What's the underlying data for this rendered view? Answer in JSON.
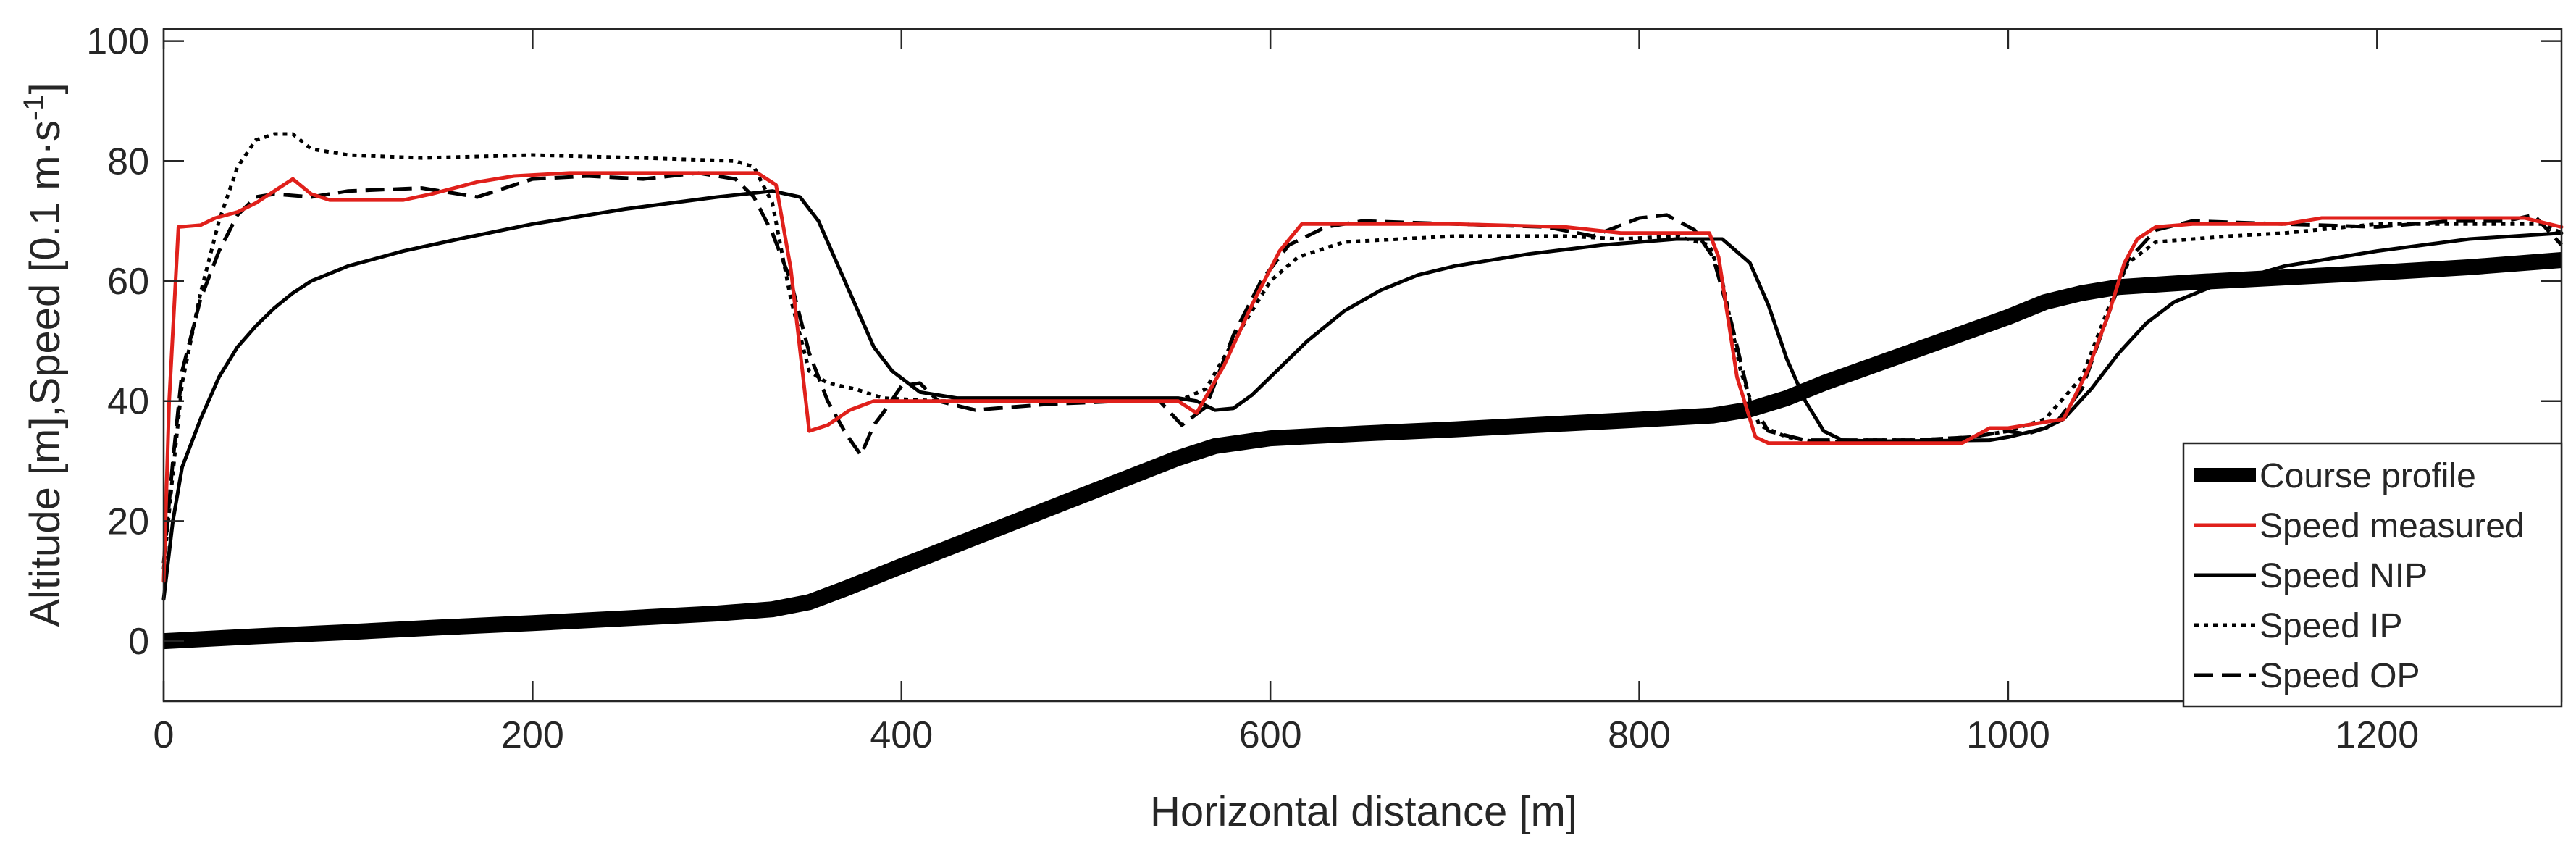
{
  "chart_data": {
    "type": "line",
    "title": "",
    "xlabel": "Horizontal distance [m]",
    "ylabel_parts": [
      "Altitude [m],Speed [0.1 m",
      "s",
      "]"
    ],
    "ylabel_dot": "·",
    "ylabel_exponent": "-1",
    "xlim": [
      0,
      1300
    ],
    "ylim": [
      -10,
      102
    ],
    "xticks": [
      0,
      200,
      400,
      600,
      800,
      1000,
      1200
    ],
    "yticks": [
      0,
      20,
      40,
      60,
      80,
      100
    ],
    "grid": false,
    "legend_position": "bottom-right",
    "series": [
      {
        "name": "Course profile",
        "color": "#000000",
        "style": "thick",
        "points": [
          [
            0,
            0
          ],
          [
            50,
            0.8
          ],
          [
            100,
            1.5
          ],
          [
            150,
            2.3
          ],
          [
            200,
            3
          ],
          [
            250,
            3.8
          ],
          [
            300,
            4.6
          ],
          [
            330,
            5.3
          ],
          [
            350,
            6.5
          ],
          [
            370,
            8.8
          ],
          [
            400,
            12.5
          ],
          [
            450,
            18.5
          ],
          [
            500,
            24.5
          ],
          [
            550,
            30.5
          ],
          [
            570,
            32.5
          ],
          [
            600,
            33.8
          ],
          [
            650,
            34.6
          ],
          [
            700,
            35.3
          ],
          [
            750,
            36.1
          ],
          [
            800,
            36.9
          ],
          [
            840,
            37.6
          ],
          [
            860,
            38.6
          ],
          [
            880,
            40.5
          ],
          [
            900,
            43
          ],
          [
            950,
            48.5
          ],
          [
            1000,
            54
          ],
          [
            1020,
            56.5
          ],
          [
            1040,
            58
          ],
          [
            1060,
            59
          ],
          [
            1100,
            59.8
          ],
          [
            1150,
            60.6
          ],
          [
            1200,
            61.4
          ],
          [
            1250,
            62.3
          ],
          [
            1300,
            63.5
          ]
        ]
      },
      {
        "name": "Speed measured",
        "color": "#e0201b",
        "style": "solid",
        "points": [
          [
            0,
            10
          ],
          [
            3,
            40
          ],
          [
            8,
            69
          ],
          [
            20,
            69.3
          ],
          [
            28,
            70.5
          ],
          [
            40,
            71.5
          ],
          [
            50,
            73
          ],
          [
            60,
            75
          ],
          [
            70,
            77
          ],
          [
            80,
            74.5
          ],
          [
            90,
            73.5
          ],
          [
            110,
            73.5
          ],
          [
            130,
            73.5
          ],
          [
            145,
            74.5
          ],
          [
            170,
            76.5
          ],
          [
            190,
            77.5
          ],
          [
            220,
            78
          ],
          [
            300,
            78
          ],
          [
            322,
            78
          ],
          [
            332,
            76
          ],
          [
            340,
            62
          ],
          [
            350,
            35
          ],
          [
            360,
            36
          ],
          [
            372,
            38.5
          ],
          [
            385,
            40
          ],
          [
            420,
            40
          ],
          [
            550,
            40
          ],
          [
            560,
            38
          ],
          [
            575,
            46
          ],
          [
            590,
            56
          ],
          [
            605,
            65
          ],
          [
            617,
            69.5
          ],
          [
            650,
            69.5
          ],
          [
            700,
            69.5
          ],
          [
            760,
            69
          ],
          [
            790,
            68
          ],
          [
            815,
            68
          ],
          [
            838,
            68
          ],
          [
            843,
            64
          ],
          [
            853,
            44
          ],
          [
            863,
            34
          ],
          [
            870,
            33
          ],
          [
            890,
            33
          ],
          [
            920,
            33
          ],
          [
            975,
            33
          ],
          [
            990,
            35.5
          ],
          [
            1000,
            35.5
          ],
          [
            1010,
            36
          ],
          [
            1030,
            37
          ],
          [
            1043,
            45
          ],
          [
            1055,
            55
          ],
          [
            1063,
            63
          ],
          [
            1070,
            67
          ],
          [
            1080,
            69
          ],
          [
            1100,
            69.5
          ],
          [
            1150,
            69.5
          ],
          [
            1170,
            70.5
          ],
          [
            1250,
            70.5
          ],
          [
            1280,
            70.5
          ],
          [
            1300,
            69
          ]
        ]
      },
      {
        "name": "Speed NIP",
        "color": "#000000",
        "style": "solid",
        "points": [
          [
            0,
            7
          ],
          [
            5,
            20
          ],
          [
            10,
            29
          ],
          [
            20,
            37
          ],
          [
            30,
            44
          ],
          [
            40,
            49
          ],
          [
            50,
            52.5
          ],
          [
            60,
            55.5
          ],
          [
            70,
            58
          ],
          [
            80,
            60
          ],
          [
            100,
            62.5
          ],
          [
            130,
            65
          ],
          [
            160,
            67
          ],
          [
            200,
            69.5
          ],
          [
            250,
            72
          ],
          [
            300,
            74
          ],
          [
            330,
            75
          ],
          [
            345,
            74
          ],
          [
            355,
            70
          ],
          [
            365,
            63
          ],
          [
            375,
            56
          ],
          [
            385,
            49
          ],
          [
            395,
            45
          ],
          [
            410,
            41.5
          ],
          [
            430,
            40.5
          ],
          [
            480,
            40.5
          ],
          [
            550,
            40.5
          ],
          [
            560,
            40
          ],
          [
            570,
            38.5
          ],
          [
            580,
            38.8
          ],
          [
            590,
            41
          ],
          [
            600,
            44
          ],
          [
            620,
            50
          ],
          [
            640,
            55
          ],
          [
            660,
            58.5
          ],
          [
            680,
            61
          ],
          [
            700,
            62.5
          ],
          [
            740,
            64.5
          ],
          [
            780,
            66
          ],
          [
            820,
            67
          ],
          [
            845,
            67
          ],
          [
            860,
            63
          ],
          [
            870,
            56
          ],
          [
            880,
            47
          ],
          [
            890,
            40
          ],
          [
            900,
            35
          ],
          [
            910,
            33.5
          ],
          [
            930,
            33.3
          ],
          [
            990,
            33.5
          ],
          [
            1000,
            34
          ],
          [
            1020,
            35.5
          ],
          [
            1030,
            37
          ],
          [
            1045,
            42
          ],
          [
            1060,
            48
          ],
          [
            1075,
            53
          ],
          [
            1090,
            56.5
          ],
          [
            1110,
            59
          ],
          [
            1150,
            62.5
          ],
          [
            1200,
            65
          ],
          [
            1250,
            67
          ],
          [
            1300,
            68
          ]
        ]
      },
      {
        "name": "Speed IP",
        "color": "#000000",
        "style": "dotted",
        "points": [
          [
            0,
            12
          ],
          [
            5,
            28
          ],
          [
            10,
            43
          ],
          [
            20,
            58
          ],
          [
            30,
            70
          ],
          [
            40,
            79
          ],
          [
            50,
            83.5
          ],
          [
            60,
            84.5
          ],
          [
            70,
            84.5
          ],
          [
            80,
            82
          ],
          [
            100,
            81
          ],
          [
            140,
            80.5
          ],
          [
            200,
            81
          ],
          [
            260,
            80.5
          ],
          [
            310,
            80
          ],
          [
            320,
            79
          ],
          [
            330,
            73
          ],
          [
            340,
            57
          ],
          [
            350,
            45
          ],
          [
            360,
            43
          ],
          [
            375,
            42
          ],
          [
            390,
            40.5
          ],
          [
            420,
            40
          ],
          [
            500,
            40
          ],
          [
            550,
            40
          ],
          [
            565,
            42
          ],
          [
            580,
            50
          ],
          [
            600,
            60
          ],
          [
            615,
            64
          ],
          [
            640,
            66.5
          ],
          [
            700,
            67.5
          ],
          [
            760,
            67.5
          ],
          [
            790,
            67
          ],
          [
            820,
            67.5
          ],
          [
            838,
            66
          ],
          [
            845,
            60
          ],
          [
            855,
            45
          ],
          [
            865,
            36
          ],
          [
            880,
            34
          ],
          [
            900,
            33
          ],
          [
            920,
            33.5
          ],
          [
            950,
            33.5
          ],
          [
            980,
            34
          ],
          [
            1000,
            35
          ],
          [
            1020,
            37
          ],
          [
            1040,
            44
          ],
          [
            1055,
            56
          ],
          [
            1065,
            63
          ],
          [
            1080,
            66.5
          ],
          [
            1120,
            67.5
          ],
          [
            1150,
            68
          ],
          [
            1200,
            69.5
          ],
          [
            1260,
            69.5
          ],
          [
            1290,
            69.5
          ],
          [
            1300,
            68
          ]
        ]
      },
      {
        "name": "Speed OP",
        "color": "#000000",
        "style": "dashed",
        "points": [
          [
            0,
            13
          ],
          [
            5,
            30
          ],
          [
            10,
            45
          ],
          [
            20,
            57
          ],
          [
            30,
            65
          ],
          [
            40,
            71
          ],
          [
            50,
            74
          ],
          [
            60,
            74.5
          ],
          [
            80,
            74
          ],
          [
            100,
            75
          ],
          [
            140,
            75.5
          ],
          [
            170,
            74
          ],
          [
            200,
            77
          ],
          [
            230,
            77.5
          ],
          [
            260,
            77
          ],
          [
            290,
            78
          ],
          [
            310,
            77
          ],
          [
            320,
            74
          ],
          [
            330,
            68
          ],
          [
            340,
            60
          ],
          [
            350,
            48
          ],
          [
            360,
            40
          ],
          [
            370,
            34.5
          ],
          [
            378,
            31
          ],
          [
            385,
            36
          ],
          [
            390,
            38
          ],
          [
            400,
            42.5
          ],
          [
            410,
            43
          ],
          [
            420,
            40
          ],
          [
            440,
            38.5
          ],
          [
            480,
            39.5
          ],
          [
            520,
            40
          ],
          [
            540,
            40
          ],
          [
            552,
            36
          ],
          [
            565,
            39
          ],
          [
            580,
            51
          ],
          [
            595,
            60
          ],
          [
            610,
            66
          ],
          [
            630,
            69
          ],
          [
            650,
            70
          ],
          [
            700,
            69.5
          ],
          [
            750,
            69
          ],
          [
            775,
            67.5
          ],
          [
            800,
            70.5
          ],
          [
            815,
            71
          ],
          [
            830,
            68.5
          ],
          [
            840,
            64
          ],
          [
            850,
            53
          ],
          [
            860,
            40
          ],
          [
            870,
            35
          ],
          [
            890,
            33.5
          ],
          [
            910,
            33.5
          ],
          [
            950,
            33.5
          ],
          [
            980,
            34
          ],
          [
            1000,
            35
          ],
          [
            1010,
            34.5
          ],
          [
            1025,
            36
          ],
          [
            1040,
            42
          ],
          [
            1055,
            55
          ],
          [
            1065,
            63.5
          ],
          [
            1080,
            68.5
          ],
          [
            1100,
            70
          ],
          [
            1150,
            69.5
          ],
          [
            1200,
            69
          ],
          [
            1240,
            70
          ],
          [
            1270,
            70
          ],
          [
            1285,
            71
          ],
          [
            1300,
            66
          ]
        ]
      }
    ]
  }
}
